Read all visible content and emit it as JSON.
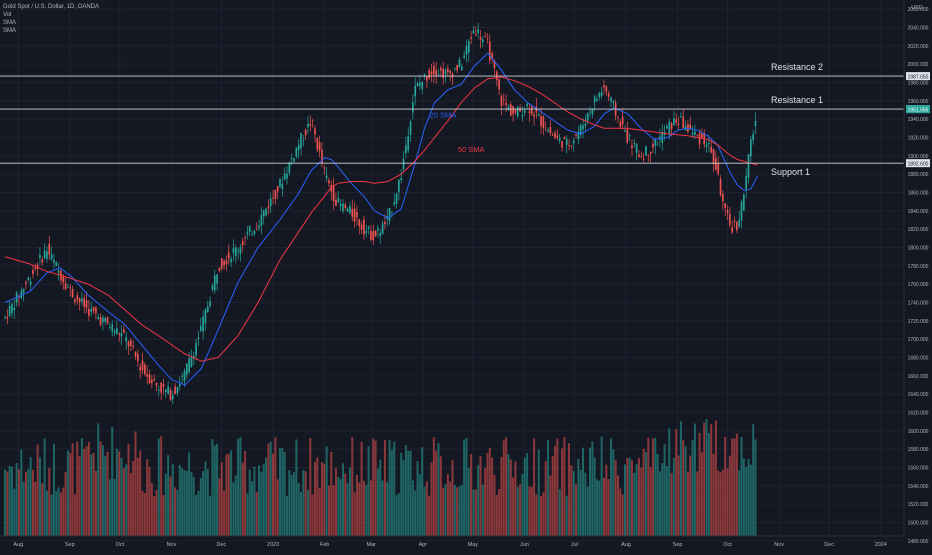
{
  "legend": {
    "symbol": "Gold Spot / U.S. Dollar, 1D, OANDA",
    "indicators": [
      "Vol",
      "SMA",
      "SMA"
    ]
  },
  "axis": {
    "currency": "USD"
  },
  "price_axis": {
    "ticks": [
      2060,
      2040,
      2020,
      2000,
      1980,
      1960,
      1940,
      1920,
      1900,
      1880,
      1860,
      1840,
      1820,
      1800,
      1780,
      1760,
      1740,
      1720,
      1700,
      1680,
      1660,
      1640,
      1620,
      1600,
      1580,
      1560,
      1540,
      1520,
      1500,
      1480
    ],
    "tick_labels": [
      "2060.000",
      "2040.000",
      "2020.000",
      "2000.000",
      "1980.000",
      "1960.000",
      "1940.000",
      "1920.000",
      "1900.000",
      "1880.000",
      "1860.000",
      "1840.000",
      "1820.000",
      "1800.000",
      "1780.000",
      "1760.000",
      "1740.000",
      "1720.000",
      "1700.000",
      "1680.000",
      "1660.000",
      "1640.000",
      "1620.000",
      "1600.000",
      "1580.000",
      "1560.000",
      "1540.000",
      "1520.000",
      "1500.000",
      "1480.000"
    ]
  },
  "time_axis": {
    "labels": [
      {
        "label": "Aug",
        "day": 8
      },
      {
        "label": "Sep",
        "day": 39
      },
      {
        "label": "Oct",
        "day": 69
      },
      {
        "label": "Nov",
        "day": 100
      },
      {
        "label": "Dec",
        "day": 130
      },
      {
        "label": "2023",
        "day": 161
      },
      {
        "label": "Feb",
        "day": 192
      },
      {
        "label": "Mar",
        "day": 220
      },
      {
        "label": "Apr",
        "day": 251
      },
      {
        "label": "May",
        "day": 281
      },
      {
        "label": "Jun",
        "day": 312
      },
      {
        "label": "Jul",
        "day": 342
      },
      {
        "label": "Aug",
        "day": 373
      },
      {
        "label": "Sep",
        "day": 404
      },
      {
        "label": "Oct",
        "day": 434
      },
      {
        "label": "Nov",
        "day": 465
      },
      {
        "label": "Dec",
        "day": 495
      },
      {
        "label": "2024",
        "day": 526
      }
    ]
  },
  "levels": [
    {
      "name": "Resistance 2",
      "value": 1987,
      "badge": "1987.050"
    },
    {
      "name": "Resistance 1",
      "value": 1951,
      "badge": "1951.055"
    },
    {
      "name": "Support 1",
      "value": 1892,
      "badge": "1892.600"
    }
  ],
  "annotations": [
    {
      "text": "20 SMA",
      "color": "#2962ff",
      "day": 255,
      "value": 1942
    },
    {
      "text": "50 SMA",
      "color": "#f23645",
      "day": 272,
      "value": 1904
    }
  ],
  "last_price_badge": "1951.055",
  "chart_data": {
    "type": "line",
    "title": "Gold Spot / U.S. Dollar, 1D, OANDA",
    "xlabel": "",
    "ylabel": "USD",
    "ylim": [
      1470,
      2070
    ],
    "x_range_days": [
      -3,
      540
    ],
    "grid": true,
    "x": [
      0,
      15,
      25,
      33,
      40,
      50,
      62,
      72,
      82,
      92,
      100,
      108,
      118,
      128,
      140,
      152,
      165,
      176,
      184,
      192,
      196,
      200,
      208,
      216,
      222,
      230,
      238,
      246,
      252,
      258,
      266,
      274,
      282,
      290,
      298,
      306,
      314,
      322,
      330,
      338,
      346,
      354,
      360,
      366,
      374,
      382,
      390,
      398,
      404,
      410,
      416,
      422,
      428,
      432,
      436,
      440,
      444,
      448,
      452
    ],
    "series": [
      {
        "name": "Gold Spot / U.S. Dollar",
        "values": [
          1724,
          1768,
          1798,
          1772,
          1750,
          1732,
          1716,
          1702,
          1668,
          1648,
          1640,
          1662,
          1712,
          1780,
          1800,
          1828,
          1868,
          1912,
          1938,
          1880,
          1862,
          1848,
          1838,
          1820,
          1812,
          1830,
          1880,
          1972,
          1985,
          1995,
          1988,
          2000,
          2040,
          2020,
          1960,
          1945,
          1955,
          1938,
          1920,
          1912,
          1930,
          1960,
          1975,
          1950,
          1920,
          1900,
          1912,
          1930,
          1940,
          1930,
          1920,
          1915,
          1880,
          1840,
          1822,
          1825,
          1860,
          1915,
          1951
        ]
      },
      {
        "name": "20 SMA",
        "values": [
          1740,
          1752,
          1772,
          1778,
          1768,
          1748,
          1730,
          1716,
          1694,
          1672,
          1656,
          1650,
          1668,
          1710,
          1762,
          1800,
          1830,
          1858,
          1884,
          1898,
          1896,
          1888,
          1870,
          1855,
          1840,
          1832,
          1842,
          1890,
          1930,
          1958,
          1972,
          1978,
          1998,
          2012,
          1994,
          1972,
          1958,
          1948,
          1938,
          1928,
          1924,
          1932,
          1946,
          1952,
          1946,
          1930,
          1918,
          1920,
          1928,
          1930,
          1928,
          1922,
          1912,
          1896,
          1880,
          1868,
          1862,
          1864,
          1878
        ]
      },
      {
        "name": "50 SMA",
        "values": [
          1790,
          1782,
          1774,
          1770,
          1766,
          1760,
          1748,
          1732,
          1716,
          1704,
          1694,
          1684,
          1676,
          1680,
          1704,
          1740,
          1786,
          1816,
          1838,
          1856,
          1866,
          1870,
          1872,
          1872,
          1870,
          1872,
          1880,
          1894,
          1906,
          1920,
          1938,
          1958,
          1974,
          1984,
          1986,
          1982,
          1976,
          1968,
          1958,
          1948,
          1940,
          1934,
          1930,
          1930,
          1930,
          1928,
          1926,
          1924,
          1923,
          1922,
          1920,
          1918,
          1912,
          1906,
          1900,
          1896,
          1894,
          1892,
          1890
        ]
      }
    ]
  }
}
